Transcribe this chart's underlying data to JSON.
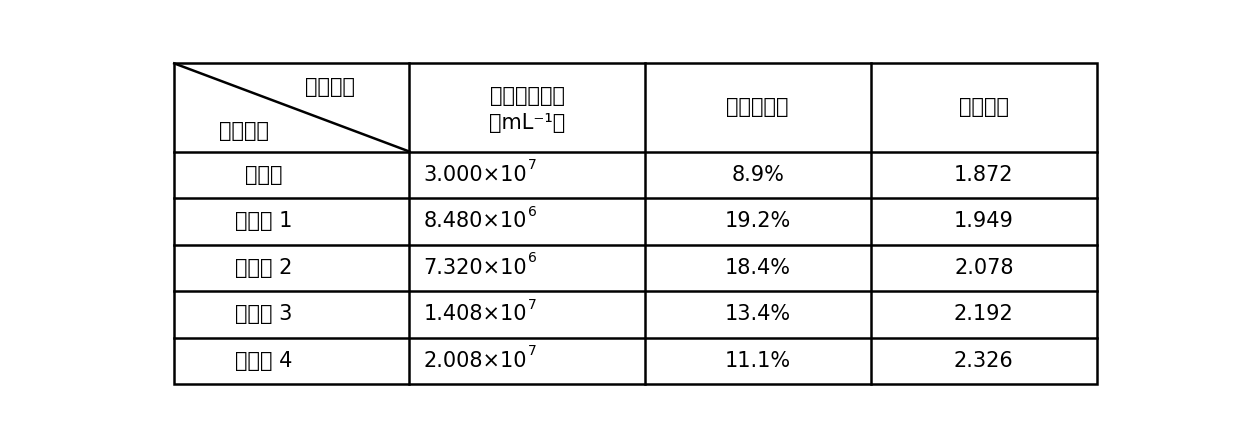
{
  "col_headers": [
    "存活细胞含量（mL⁻¹）",
    "细胞碎片率",
    "细胞活力"
  ],
  "col_headers_line1": [
    "存活细胞含量",
    "细胞碎片率",
    "细胞活力"
  ],
  "col_headers_line2": [
    "（mL⁻¹）",
    "",
    ""
  ],
  "row_headers": [
    "酶解法",
    "实施例 1",
    "实施例 2",
    "实施例 3",
    "实施例 4"
  ],
  "cell_data": [
    [
      "3.000×10",
      "7",
      "8.9%",
      "1.872"
    ],
    [
      "8.480×10",
      "6",
      "19.2%",
      "1.949"
    ],
    [
      "7.320×10",
      "6",
      "18.4%",
      "2.078"
    ],
    [
      "1.408×10",
      "7",
      "13.4%",
      "2.192"
    ],
    [
      "2.008×10",
      "7",
      "11.1%",
      "2.326"
    ]
  ],
  "header_top_left_top": "测定样品",
  "header_top_left_bottom": "检测项目",
  "bg_color": "#ffffff",
  "text_color": "#000000",
  "line_color": "#000000",
  "font_size": 15,
  "small_font_size": 10
}
